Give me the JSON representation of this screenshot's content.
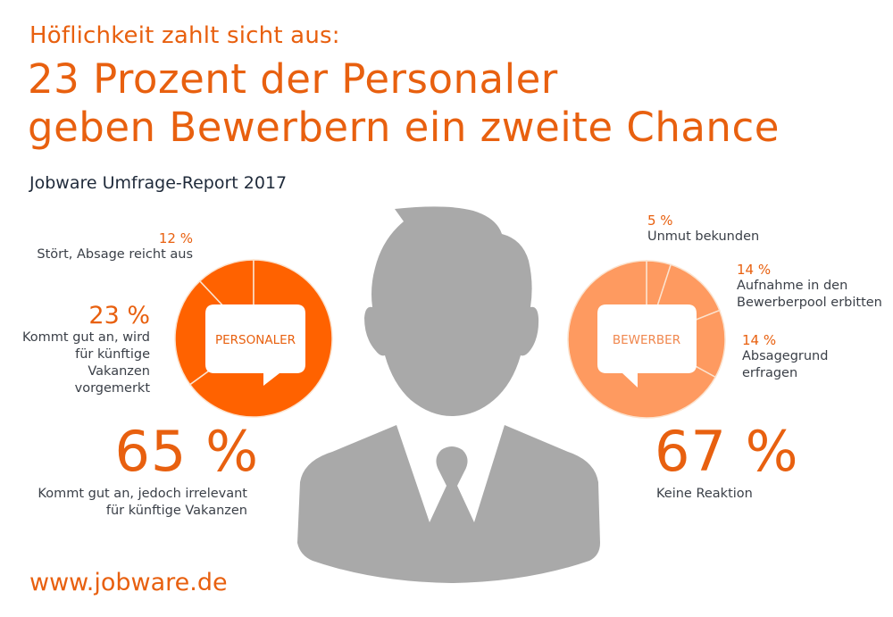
{
  "header": {
    "kicker": "Höflichkeit zahlt sicht aus:",
    "headline_line1": "23 Prozent der Personaler",
    "headline_line2": "geben Bewerbern ein zweite Chance",
    "subtitle": "Jobware Umfrage-Report 2017"
  },
  "footer": {
    "url": "www.jobware.de"
  },
  "icons": {
    "center": "businessman-silhouette-icon",
    "bubble": "speech-bubble-icon"
  },
  "colors": {
    "personaler": "#ff6200",
    "bewerber": "#fe9a60",
    "text_orange": "#e8600f",
    "silhouette": "#a9a9a9",
    "separator": "#fbe3cf"
  },
  "chart_data": [
    {
      "type": "pie",
      "title": "PERSONALER",
      "slices": [
        {
          "label": "Kommt gut an, jedoch irrelevant für künftige Vakanzen",
          "value": 65,
          "display": "65 %"
        },
        {
          "label": "Kommt gut an, wird für künftige Vakanzen vorgemerkt",
          "value": 23,
          "display": "23 %"
        },
        {
          "label": "Stört, Absage reicht aus",
          "value": 12,
          "display": "12 %"
        }
      ]
    },
    {
      "type": "pie",
      "title": "BEWERBER",
      "slices": [
        {
          "label": "Unmut bekunden",
          "value": 5,
          "display": "5 %"
        },
        {
          "label": "Aufnahme in den Bewerberpool erbitten",
          "value": 14,
          "display": "14 %"
        },
        {
          "label": "Absagegrund erfragen",
          "value": 14,
          "display": "14 %"
        },
        {
          "label": "Keine Reaktion",
          "value": 67,
          "display": "67 %"
        }
      ]
    }
  ],
  "labels": {
    "left": {
      "s12_pct": "12 %",
      "s12_text": "Stört, Absage reicht aus",
      "s23_pct": "23 %",
      "s23_line1": "Kommt gut an, wird",
      "s23_line2": "für künftige Vakanzen",
      "s23_line3": "vorgemerkt",
      "s65_pct": "65 %",
      "s65_line1": "Kommt gut an, jedoch irrelevant",
      "s65_line2": "für künftige Vakanzen"
    },
    "right": {
      "s5_pct": "5 %",
      "s5_text": "Unmut bekunden",
      "s14a_pct": "14 %",
      "s14a_line1": "Aufnahme in den",
      "s14a_line2": "Bewerberpool erbitten",
      "s14b_pct": "14 %",
      "s14b_line1": "Absagegrund",
      "s14b_line2": "erfragen",
      "s67_pct": "67 %",
      "s67_text": "Keine Reaktion"
    }
  }
}
